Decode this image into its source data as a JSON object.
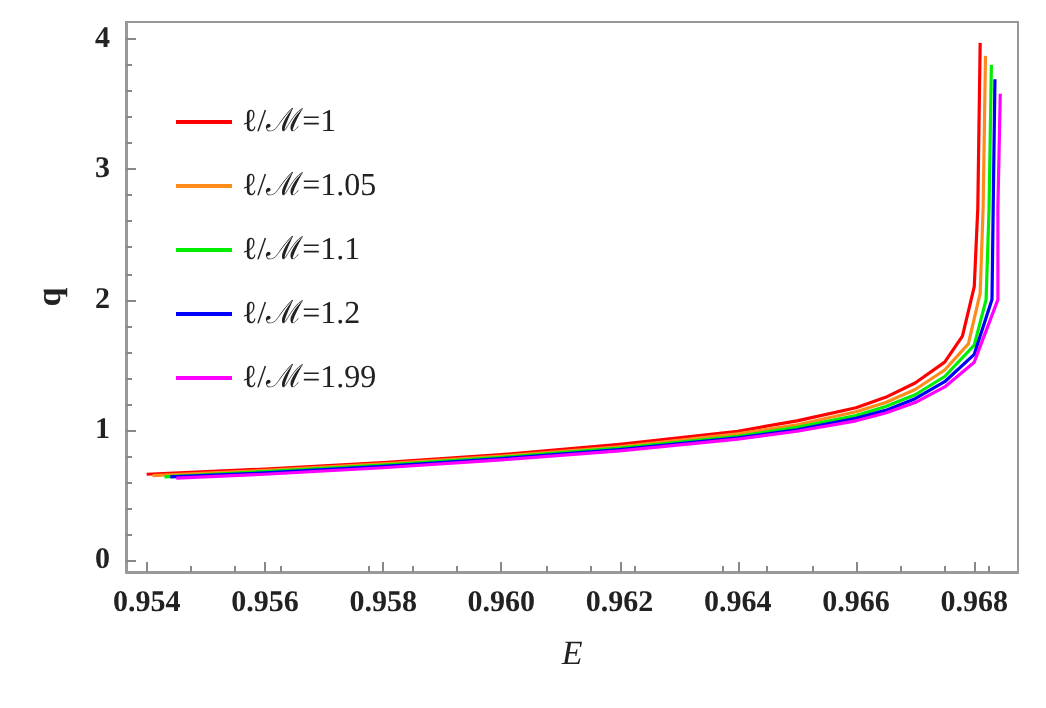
{
  "chart_data": {
    "type": "line",
    "xlabel": "E",
    "ylabel": "q",
    "xlim": [
      0.95365,
      0.96874
    ],
    "ylim": [
      -0.09,
      4.13
    ],
    "xticks": [
      {
        "value": 0.954,
        "label": "0.954"
      },
      {
        "value": 0.956,
        "label": "0.956"
      },
      {
        "value": 0.958,
        "label": "0.958"
      },
      {
        "value": 0.96,
        "label": "0.960"
      },
      {
        "value": 0.962,
        "label": "0.962"
      },
      {
        "value": 0.964,
        "label": "0.964"
      },
      {
        "value": 0.966,
        "label": "0.966"
      },
      {
        "value": 0.968,
        "label": "0.968"
      }
    ],
    "yticks": [
      0,
      1,
      2,
      3,
      4
    ],
    "grid": false,
    "legend": "top left",
    "marker": "none",
    "line_style": "solid",
    "series": [
      {
        "name": "ℓ/ℳ=1",
        "color": "#ff0000",
        "x": [
          0.954,
          0.956,
          0.958,
          0.96,
          0.962,
          0.964,
          0.965,
          0.966,
          0.9665,
          0.967,
          0.9675,
          0.9678,
          0.968,
          0.96806,
          0.9681
        ],
        "values": [
          0.66,
          0.7,
          0.75,
          0.81,
          0.89,
          0.99,
          1.07,
          1.17,
          1.25,
          1.36,
          1.52,
          1.72,
          2.1,
          2.7,
          3.97
        ]
      },
      {
        "name": "ℓ/ℳ=1.05",
        "color": "#ff8c1a",
        "x": [
          0.9541,
          0.956,
          0.958,
          0.96,
          0.962,
          0.964,
          0.965,
          0.966,
          0.9665,
          0.967,
          0.9675,
          0.9679,
          0.9681,
          0.96815,
          0.96819
        ],
        "values": [
          0.65,
          0.69,
          0.74,
          0.8,
          0.87,
          0.97,
          1.04,
          1.14,
          1.21,
          1.31,
          1.46,
          1.66,
          2.05,
          2.7,
          3.87
        ]
      },
      {
        "name": "ℓ/ℳ=1.1",
        "color": "#00ee00",
        "x": [
          0.9543,
          0.956,
          0.958,
          0.96,
          0.962,
          0.964,
          0.965,
          0.966,
          0.9665,
          0.967,
          0.9675,
          0.968,
          0.9682,
          0.96825,
          0.96829
        ],
        "values": [
          0.64,
          0.68,
          0.73,
          0.79,
          0.86,
          0.95,
          1.02,
          1.11,
          1.18,
          1.27,
          1.41,
          1.65,
          2.0,
          2.7,
          3.8
        ]
      },
      {
        "name": "ℓ/ℳ=1.2",
        "color": "#0000ff",
        "x": [
          0.9544,
          0.956,
          0.958,
          0.96,
          0.962,
          0.964,
          0.965,
          0.966,
          0.9665,
          0.967,
          0.9675,
          0.968,
          0.9683,
          0.96832,
          0.96835
        ],
        "values": [
          0.64,
          0.67,
          0.72,
          0.78,
          0.85,
          0.94,
          1.0,
          1.09,
          1.15,
          1.24,
          1.37,
          1.58,
          2.0,
          2.7,
          3.69
        ]
      },
      {
        "name": "ℓ/ℳ=1.99",
        "color": "#ff00ff",
        "x": [
          0.9545,
          0.956,
          0.958,
          0.96,
          0.962,
          0.964,
          0.965,
          0.966,
          0.9665,
          0.967,
          0.9675,
          0.968,
          0.9684,
          0.9684,
          0.96844
        ],
        "values": [
          0.63,
          0.66,
          0.71,
          0.77,
          0.84,
          0.93,
          0.99,
          1.07,
          1.13,
          1.21,
          1.33,
          1.52,
          2.0,
          2.7,
          3.58
        ]
      }
    ]
  }
}
